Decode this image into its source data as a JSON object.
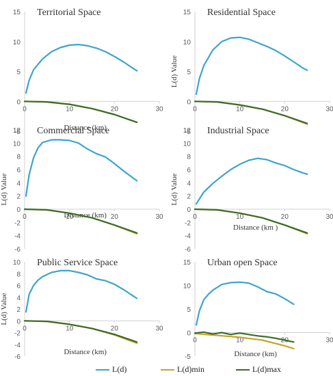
{
  "colors": {
    "ld": "#3ea3cf",
    "ldmin": "#c9a227",
    "ldmax": "#3d6b2a",
    "axis": "#d0d0d0",
    "text": "#595959"
  },
  "legend": {
    "items": [
      {
        "label": "L(d)",
        "color": "#3ea3cf"
      },
      {
        "label": "L(d)min",
        "color": "#c9a227"
      },
      {
        "label": "L(d)max",
        "color": "#3d6b2a"
      }
    ]
  },
  "chart_data": [
    {
      "type": "line",
      "title": "Territorial Space",
      "ylabel": "",
      "xlabel": "Distance (km)",
      "xlim": [
        0,
        30
      ],
      "ylim": [
        -5,
        15
      ],
      "xticks": [
        0,
        10,
        20,
        30
      ],
      "yticks": [
        -5,
        0,
        5,
        10,
        15
      ],
      "series": [
        {
          "name": "L(d)",
          "x": [
            0.3,
            1,
            2,
            4,
            6,
            8,
            10,
            12,
            14,
            16,
            18,
            20,
            22,
            24,
            25
          ],
          "y": [
            1.4,
            3.5,
            5.3,
            7.1,
            8.3,
            9.0,
            9.4,
            9.5,
            9.3,
            8.9,
            8.3,
            7.5,
            6.6,
            5.6,
            5.1
          ]
        },
        {
          "name": "L(d)min",
          "x": [
            0,
            5,
            10,
            15,
            20,
            25
          ],
          "y": [
            0,
            -0.1,
            -0.5,
            -1.2,
            -2.2,
            -3.5
          ]
        },
        {
          "name": "L(d)max",
          "x": [
            0,
            5,
            10,
            15,
            20,
            25
          ],
          "y": [
            0,
            -0.1,
            -0.5,
            -1.2,
            -2.2,
            -3.5
          ]
        }
      ]
    },
    {
      "type": "line",
      "title": "Residential Space",
      "ylabel": "L(d) Value",
      "xlabel": "",
      "xlim": [
        0,
        30
      ],
      "ylim": [
        -5,
        15
      ],
      "xticks": [
        0,
        10,
        20,
        30
      ],
      "yticks": [
        -5,
        0,
        5,
        10,
        15
      ],
      "series": [
        {
          "name": "L(d)",
          "x": [
            0.3,
            1,
            2,
            4,
            6,
            8,
            10,
            12,
            14,
            16,
            18,
            20,
            22,
            24,
            25
          ],
          "y": [
            1.2,
            3.8,
            6.0,
            8.6,
            10.0,
            10.6,
            10.7,
            10.4,
            9.8,
            9.2,
            8.5,
            7.6,
            6.6,
            5.6,
            5.2
          ]
        },
        {
          "name": "L(d)min",
          "x": [
            0,
            5,
            10,
            15,
            20,
            25
          ],
          "y": [
            0,
            -0.1,
            -0.6,
            -1.3,
            -2.4,
            -3.8
          ]
        },
        {
          "name": "L(d)max",
          "x": [
            0,
            5,
            10,
            15,
            20,
            25
          ],
          "y": [
            0,
            -0.1,
            -0.6,
            -1.3,
            -2.4,
            -3.7
          ]
        }
      ]
    },
    {
      "type": "line",
      "title": "Commercial Space",
      "ylabel": "L(d) Value",
      "xlabel": "Distance (km)",
      "xlim": [
        0,
        30
      ],
      "ylim": [
        -6,
        12
      ],
      "xticks": [
        0,
        10,
        20,
        30
      ],
      "yticks": [
        -6,
        -4,
        -2,
        0,
        2,
        4,
        6,
        8,
        10,
        12
      ],
      "series": [
        {
          "name": "L(d)",
          "x": [
            0.3,
            1,
            2,
            3,
            4,
            6,
            8,
            10,
            12,
            14,
            16,
            18,
            20,
            22,
            24,
            25
          ],
          "y": [
            2.0,
            5.2,
            7.8,
            9.3,
            10.1,
            10.5,
            10.5,
            10.4,
            10.0,
            9.1,
            8.4,
            7.9,
            6.9,
            5.8,
            4.8,
            4.3
          ]
        },
        {
          "name": "L(d)min",
          "x": [
            0,
            5,
            10,
            15,
            20,
            25
          ],
          "y": [
            0,
            -0.1,
            -0.6,
            -1.3,
            -2.4,
            -3.7
          ]
        },
        {
          "name": "L(d)max",
          "x": [
            0,
            5,
            10,
            15,
            20,
            25
          ],
          "y": [
            0,
            -0.1,
            -0.6,
            -1.3,
            -2.4,
            -3.6
          ]
        }
      ]
    },
    {
      "type": "line",
      "title": "Industrial Space",
      "ylabel": "L(d) Value",
      "xlabel": "Distance (km )",
      "xlim": [
        0,
        30
      ],
      "ylim": [
        -6,
        12
      ],
      "xticks": [
        0,
        10,
        20,
        30
      ],
      "yticks": [
        -6,
        -4,
        -2,
        0,
        2,
        4,
        6,
        8,
        10,
        12
      ],
      "series": [
        {
          "name": "L(d)",
          "x": [
            0.3,
            2,
            4,
            6,
            8,
            10,
            12,
            14,
            16,
            18,
            20,
            22,
            24,
            25
          ],
          "y": [
            0.8,
            2.6,
            3.9,
            5.0,
            6.0,
            6.8,
            7.4,
            7.7,
            7.5,
            7.0,
            6.6,
            6.0,
            5.5,
            5.3
          ]
        },
        {
          "name": "L(d)min",
          "x": [
            0,
            5,
            10,
            15,
            20,
            25
          ],
          "y": [
            0,
            -0.1,
            -0.6,
            -1.3,
            -2.4,
            -3.7
          ]
        },
        {
          "name": "L(d)max",
          "x": [
            0,
            5,
            10,
            15,
            20,
            25
          ],
          "y": [
            0,
            -0.1,
            -0.6,
            -1.3,
            -2.4,
            -3.6
          ]
        }
      ]
    },
    {
      "type": "line",
      "title": "Public Service Space",
      "ylabel": "L(d) Value",
      "xlabel": "Distance (km)",
      "xlim": [
        0,
        30
      ],
      "ylim": [
        -6,
        10
      ],
      "xticks": [
        0,
        10,
        20,
        30
      ],
      "yticks": [
        -6,
        -4,
        -2,
        0,
        2,
        4,
        6,
        8,
        10
      ],
      "series": [
        {
          "name": "L(d)",
          "x": [
            0.3,
            1,
            2,
            3,
            4,
            6,
            8,
            10,
            12,
            14,
            16,
            18,
            20,
            22,
            24,
            25
          ],
          "y": [
            1.5,
            4.5,
            6.0,
            6.9,
            7.5,
            8.2,
            8.5,
            8.5,
            8.2,
            7.8,
            7.1,
            6.8,
            6.2,
            5.3,
            4.3,
            3.8
          ]
        },
        {
          "name": "L(d)min",
          "x": [
            0,
            5,
            10,
            15,
            20,
            25
          ],
          "y": [
            0,
            -0.1,
            -0.6,
            -1.3,
            -2.4,
            -3.8
          ]
        },
        {
          "name": "L(d)max",
          "x": [
            0,
            5,
            10,
            15,
            20,
            25
          ],
          "y": [
            0,
            -0.1,
            -0.6,
            -1.3,
            -2.3,
            -3.6
          ]
        }
      ]
    },
    {
      "type": "line",
      "title": "Urban open Space",
      "ylabel": "",
      "xlabel": "Distance (km)",
      "xlim": [
        0,
        30
      ],
      "ylim": [
        -5,
        15
      ],
      "xticks": [
        0,
        10,
        20,
        30
      ],
      "yticks": [
        -5,
        0,
        5,
        10,
        15
      ],
      "series": [
        {
          "name": "L(d)",
          "x": [
            0.3,
            1,
            2,
            3,
            4,
            6,
            8,
            10,
            12,
            14,
            16,
            18,
            20,
            22
          ],
          "y": [
            1.6,
            4.6,
            7.0,
            8.1,
            9.0,
            10.2,
            10.6,
            10.7,
            10.5,
            9.7,
            8.7,
            8.2,
            7.2,
            6.0
          ]
        },
        {
          "name": "L(d)min",
          "x": [
            0,
            5,
            10,
            15,
            20,
            22
          ],
          "y": [
            -0.2,
            -0.6,
            -1.0,
            -1.6,
            -2.8,
            -3.4
          ]
        },
        {
          "name": "L(d)max",
          "x": [
            0,
            2,
            4,
            6,
            8,
            10,
            12,
            14,
            16,
            18,
            20,
            22
          ],
          "y": [
            -0.1,
            0.1,
            -0.3,
            0.0,
            -0.4,
            -0.1,
            -0.4,
            -0.7,
            -0.9,
            -1.2,
            -1.6,
            -2.0
          ]
        }
      ]
    }
  ]
}
